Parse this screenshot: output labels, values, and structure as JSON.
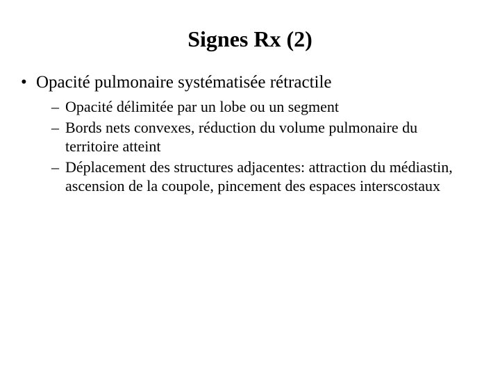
{
  "slide": {
    "title": "Signes Rx (2)",
    "title_fontsize": 32,
    "title_fontweight": "bold",
    "background_color": "#ffffff",
    "text_color": "#000000",
    "font_family": "Times New Roman",
    "bullets": [
      {
        "text": "Opacité pulmonaire systématisée rétractile",
        "fontsize": 25,
        "marker": "•",
        "children": [
          {
            "text": "Opacité délimitée par un lobe ou un segment",
            "fontsize": 22,
            "marker": "–"
          },
          {
            "text": "Bords nets convexes, réduction du volume pulmonaire du territoire atteint",
            "fontsize": 22,
            "marker": "–"
          },
          {
            "text": "Déplacement des structures adjacentes: attraction du médiastin, ascension de la coupole, pincement des espaces interscostaux",
            "fontsize": 22,
            "marker": "–"
          }
        ]
      }
    ]
  }
}
